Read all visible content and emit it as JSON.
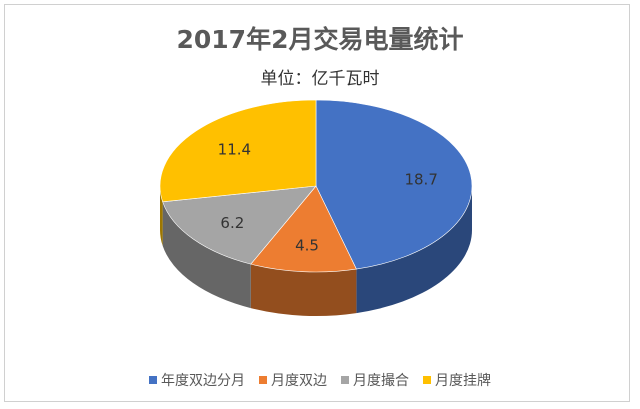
{
  "chart_data": {
    "type": "pie",
    "style": "3d",
    "title": "2017年2月交易电量统计",
    "subtitle": "单位：亿千瓦时",
    "categories": [
      "年度双边分月",
      "月度双边",
      "月度撮合",
      "月度挂牌"
    ],
    "values": [
      18.7,
      4.5,
      6.2,
      11.4
    ],
    "labels": [
      "18.7",
      "4.5",
      "6.2",
      "11.4"
    ],
    "colors": [
      "#4472c4",
      "#ed7d31",
      "#a5a5a5",
      "#ffc000"
    ],
    "legend_position": "bottom",
    "start_angle": "12 o'clock, clockwise"
  }
}
